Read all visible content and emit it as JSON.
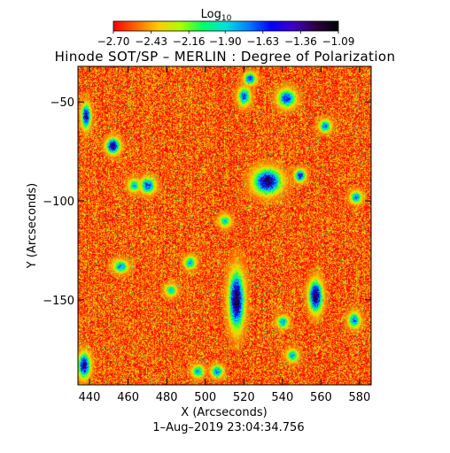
{
  "chart_data": {
    "type": "heatmap",
    "title": "Hinode SOT/SP – MERLIN : Degree of Polarization",
    "subtitle": "1–Aug–2019 23:04:34.756",
    "xlabel": "X (Arcseconds)",
    "ylabel": "Y (Arcseconds)",
    "xlim": [
      434,
      586
    ],
    "ylim": [
      -193,
      -32
    ],
    "x_ticks": [
      440,
      460,
      480,
      500,
      520,
      540,
      560,
      580
    ],
    "x_tick_labels": [
      "440",
      "460",
      "480",
      "500",
      "520",
      "540",
      "560",
      "580"
    ],
    "y_ticks": [
      -50,
      -100,
      -150
    ],
    "y_tick_labels": [
      "−50",
      "−100",
      "−150"
    ],
    "colorbar": {
      "title_base": "Log",
      "title_sub": "10",
      "range": [
        -2.7,
        -1.09
      ],
      "tick_values": [
        -2.7,
        -2.43,
        -2.16,
        -1.9,
        -1.63,
        -1.36,
        -1.09
      ],
      "tick_labels": [
        "−2.70",
        "−2.43",
        "−2.16",
        "−1.90",
        "−1.63",
        "−1.36",
        "−1.09"
      ],
      "colormap": [
        "#ff0000",
        "#ff6600",
        "#ffcc00",
        "#aaff00",
        "#00ff66",
        "#00e0e0",
        "#0080ff",
        "#0000ff",
        "#4000c0",
        "#2a0040",
        "#000000"
      ]
    },
    "background_value": -2.6,
    "features": [
      {
        "x": 516,
        "y": -150,
        "sx": 2.5,
        "sy": 9,
        "peak": -1.15
      },
      {
        "x": 557,
        "y": -148,
        "sx": 2.2,
        "sy": 5,
        "peak": -1.2
      },
      {
        "x": 532,
        "y": -90,
        "sx": 4.5,
        "sy": 4,
        "peak": -1.25
      },
      {
        "x": 452,
        "y": -72,
        "sx": 2.2,
        "sy": 2.5,
        "peak": -1.3
      },
      {
        "x": 438,
        "y": -57,
        "sx": 1.5,
        "sy": 4,
        "peak": -1.4
      },
      {
        "x": 437,
        "y": -183,
        "sx": 2,
        "sy": 4,
        "peak": -1.35
      },
      {
        "x": 549,
        "y": -87,
        "sx": 1.8,
        "sy": 2,
        "peak": -1.5
      },
      {
        "x": 542,
        "y": -48,
        "sx": 3,
        "sy": 3,
        "peak": -1.6
      },
      {
        "x": 520,
        "y": -47,
        "sx": 2,
        "sy": 3,
        "peak": -1.65
      },
      {
        "x": 470,
        "y": -92,
        "sx": 2.5,
        "sy": 2.5,
        "peak": -1.6
      },
      {
        "x": 523,
        "y": -38,
        "sx": 2,
        "sy": 2,
        "peak": -1.6
      },
      {
        "x": 562,
        "y": -62,
        "sx": 2,
        "sy": 2,
        "peak": -1.7
      },
      {
        "x": 578,
        "y": -98,
        "sx": 2,
        "sy": 2,
        "peak": -1.7
      },
      {
        "x": 577,
        "y": -160,
        "sx": 2,
        "sy": 2.5,
        "peak": -1.7
      },
      {
        "x": 506,
        "y": -186,
        "sx": 2,
        "sy": 2,
        "peak": -1.7
      },
      {
        "x": 456,
        "y": -133,
        "sx": 2.5,
        "sy": 2,
        "peak": -1.75
      },
      {
        "x": 492,
        "y": -131,
        "sx": 2,
        "sy": 2,
        "peak": -1.8
      },
      {
        "x": 463,
        "y": -92,
        "sx": 2,
        "sy": 2,
        "peak": -1.8
      },
      {
        "x": 540,
        "y": -161,
        "sx": 2,
        "sy": 2,
        "peak": -1.8
      },
      {
        "x": 545,
        "y": -178,
        "sx": 2,
        "sy": 2,
        "peak": -1.8
      },
      {
        "x": 496,
        "y": -186,
        "sx": 2,
        "sy": 2,
        "peak": -1.8
      },
      {
        "x": 510,
        "y": -110,
        "sx": 2,
        "sy": 2,
        "peak": -1.9
      },
      {
        "x": 482,
        "y": -145,
        "sx": 2,
        "sy": 2,
        "peak": -1.9
      }
    ]
  }
}
